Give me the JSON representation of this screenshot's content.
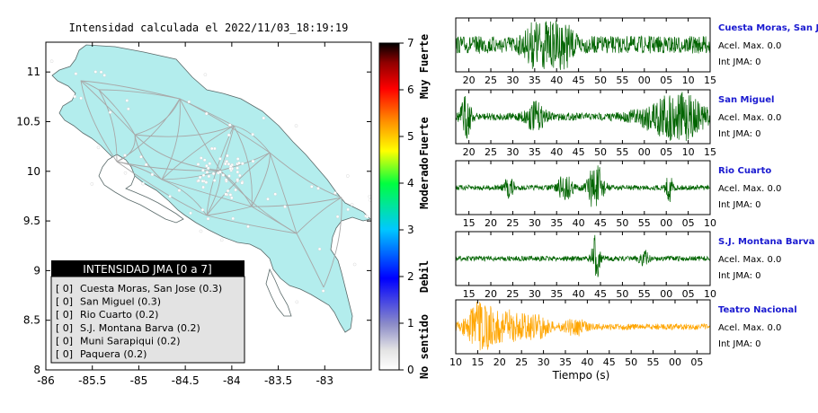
{
  "map": {
    "title": "Intensidad calculada el 2022/11/03_18:19:19",
    "x_ticks": [
      "-86",
      "-85.5",
      "-85",
      "-84.5",
      "-84",
      "-83.5",
      "-83"
    ],
    "y_ticks": [
      "11",
      "10.5",
      "10",
      "9.5",
      "9",
      "8.5",
      "8"
    ],
    "xlim": [
      -86,
      -82.5
    ],
    "ylim": [
      8,
      11.3
    ],
    "land_color": "#b3eded",
    "station_color": "#ffffff"
  },
  "legend": {
    "title": "INTENSIDAD JMA [0 a 7]",
    "items": [
      {
        "level": "[ 0]",
        "name": "Cuesta Moras, San Jose (0.3)"
      },
      {
        "level": "[ 0]",
        "name": "San Miguel (0.3)"
      },
      {
        "level": "[ 0]",
        "name": "Rio Cuarto (0.2)"
      },
      {
        "level": "[ 0]",
        "name": "S.J. Montana Barva (0.2)"
      },
      {
        "level": "[ 0]",
        "name": "Muni Sarapiqui (0.2)"
      },
      {
        "level": "[ 0]",
        "name": "Paquera (0.2)"
      }
    ]
  },
  "colorbar": {
    "min": 0,
    "max": 7,
    "ticks": [
      "0",
      "1",
      "2",
      "3",
      "4",
      "5",
      "6",
      "7"
    ],
    "categories": [
      {
        "label": "No sentido",
        "at": 0.5
      },
      {
        "label": "Debil",
        "at": 2
      },
      {
        "label": "Moderado",
        "at": 4
      },
      {
        "label": "Fuerte",
        "at": 5
      },
      {
        "label": "Muy Fuerte",
        "at": 6.5
      }
    ],
    "stops": [
      "#ffffff",
      "#8080d0",
      "#0000ff",
      "#00c8ff",
      "#00ff50",
      "#ffff00",
      "#ff9000",
      "#ff0000",
      "#000000"
    ]
  },
  "chart_data": [
    {
      "type": "line",
      "name": "Cuesta Moras, San Jose",
      "accel": "Acel. Max. 0.0",
      "jma": "Int JMA: 0",
      "x_ticks": [
        "20",
        "25",
        "30",
        "35",
        "40",
        "45",
        "50",
        "55",
        "00",
        "05",
        "10",
        "15"
      ],
      "x_start": 17,
      "x_span": 58,
      "color": "#006400",
      "amp": 0.35,
      "bursts": [
        {
          "c": 0.33,
          "w": 0.05,
          "a": 0.9
        },
        {
          "c": 0.42,
          "w": 0.04,
          "a": 0.7
        }
      ]
    },
    {
      "type": "line",
      "name": "San Miguel",
      "accel": "Acel. Max. 0.0",
      "jma": "Int JMA: 0",
      "x_ticks": [
        "20",
        "25",
        "30",
        "35",
        "40",
        "45",
        "50",
        "55",
        "00",
        "05",
        "10",
        "15"
      ],
      "x_start": 17,
      "x_span": 58,
      "color": "#006400",
      "amp": 0.15,
      "bursts": [
        {
          "c": 0.04,
          "w": 0.02,
          "a": 0.8
        },
        {
          "c": 0.31,
          "w": 0.04,
          "a": 0.5
        },
        {
          "c": 0.86,
          "w": 0.12,
          "a": 0.95
        }
      ]
    },
    {
      "type": "line",
      "name": "Rio Cuarto",
      "accel": "Acel. Max. 0.0",
      "jma": "Int JMA: 0",
      "x_ticks": [
        "15",
        "20",
        "25",
        "30",
        "35",
        "40",
        "45",
        "50",
        "55",
        "00",
        "05",
        "10"
      ],
      "x_start": 12,
      "x_span": 58,
      "color": "#006400",
      "amp": 0.1,
      "bursts": [
        {
          "c": 0.21,
          "w": 0.02,
          "a": 0.4
        },
        {
          "c": 0.43,
          "w": 0.03,
          "a": 0.5
        },
        {
          "c": 0.55,
          "w": 0.03,
          "a": 0.95
        },
        {
          "c": 0.84,
          "w": 0.015,
          "a": 0.5
        }
      ]
    },
    {
      "type": "line",
      "name": "S.J. Montana Barva",
      "accel": "Acel. Max. 0.0",
      "jma": "Int JMA: 0",
      "x_ticks": [
        "15",
        "20",
        "25",
        "30",
        "35",
        "40",
        "45",
        "50",
        "55",
        "00",
        "05",
        "10"
      ],
      "x_start": 12,
      "x_span": 58,
      "color": "#006400",
      "amp": 0.1,
      "bursts": [
        {
          "c": 0.55,
          "w": 0.015,
          "a": 0.95
        },
        {
          "c": 0.74,
          "w": 0.02,
          "a": 0.3
        }
      ]
    },
    {
      "type": "line",
      "name": "Teatro Nacional",
      "accel": "Acel. Max. 0.0",
      "jma": "Int JMA: 0",
      "x_ticks": [
        "10",
        "15",
        "20",
        "25",
        "30",
        "35",
        "40",
        "45",
        "50",
        "55",
        "00",
        "05"
      ],
      "x_start": 10,
      "x_span": 58,
      "color": "#ffa500",
      "amp": 0.12,
      "xlabel": "Tiempo (s)",
      "bursts": [
        {
          "c": 0.1,
          "w": 0.06,
          "a": 0.95
        },
        {
          "c": 0.22,
          "w": 0.06,
          "a": 0.55
        },
        {
          "c": 0.32,
          "w": 0.05,
          "a": 0.4
        },
        {
          "c": 0.47,
          "w": 0.04,
          "a": 0.3
        }
      ]
    }
  ]
}
